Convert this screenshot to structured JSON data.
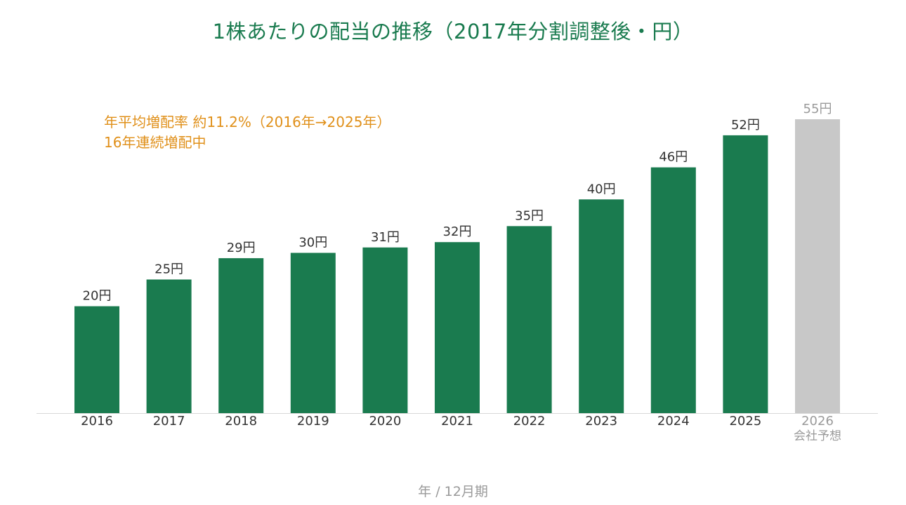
{
  "chart_data": {
    "type": "bar",
    "title": "1株あたりの配当の推移（2017年分割調整後・円）",
    "xlabel": "年 / 12月期",
    "ylabel": "",
    "ylim": [
      0,
      60
    ],
    "grid": false,
    "categories": [
      "2016",
      "2017",
      "2018",
      "2019",
      "2020",
      "2021",
      "2022",
      "2023",
      "2024",
      "2025",
      "2026"
    ],
    "category_sublabels": [
      "",
      "",
      "",
      "",
      "",
      "",
      "",
      "",
      "",
      "",
      "会社予想"
    ],
    "values": [
      20,
      25,
      29,
      30,
      31,
      32,
      35,
      40,
      46,
      52,
      55
    ],
    "value_labels": [
      "20円",
      "25円",
      "29円",
      "30円",
      "31円",
      "32円",
      "35円",
      "40円",
      "46円",
      "52円",
      "55円"
    ],
    "forecast": [
      false,
      false,
      false,
      false,
      false,
      false,
      false,
      false,
      false,
      false,
      true
    ],
    "annotations": [
      "年平均増配率 約11.2%（2016年→2025年）",
      "16年連続増配中"
    ]
  },
  "colors": {
    "actual_bar": "#1a7b4f",
    "forecast_bar": "#c8c8c8",
    "title": "#1a7b4f",
    "annotation": "#e0901a",
    "label_text": "#333333",
    "forecast_text": "#9a9a9a",
    "axis_line": "#d9d9d9"
  }
}
